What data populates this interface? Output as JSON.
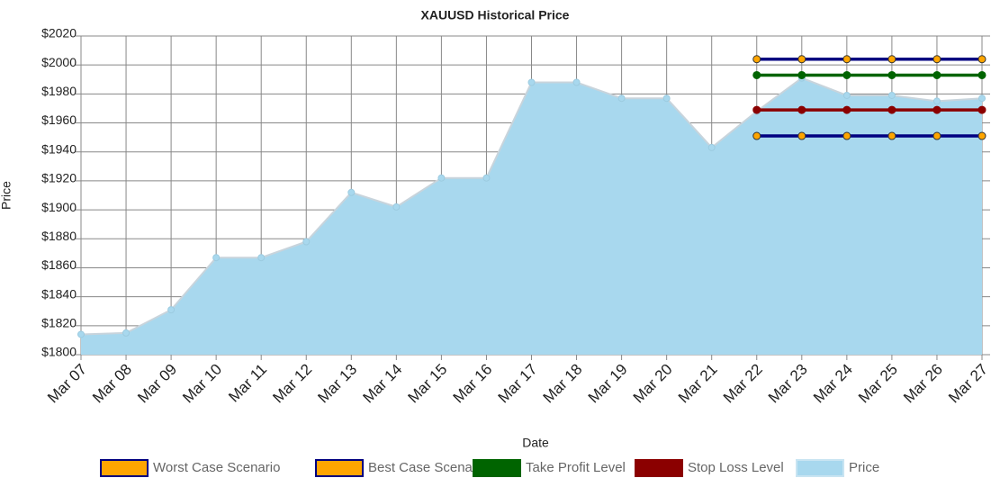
{
  "chart_data": {
    "type": "line",
    "title": "XAUUSD  Historical Price",
    "x_label": "Date",
    "y_label": "Price",
    "categories": [
      "Mar 07",
      "Mar 08",
      "Mar 09",
      "Mar 10",
      "Mar 11",
      "Mar 12",
      "Mar 13",
      "Mar 14",
      "Mar 15",
      "Mar 16",
      "Mar 17",
      "Mar 18",
      "Mar 19",
      "Mar 20",
      "Mar 21",
      "Mar 22",
      "Mar 23",
      "Mar 24",
      "Mar 25",
      "Mar 26",
      "Mar 27"
    ],
    "series": [
      {
        "name": "Worst Case Scenario",
        "color": "#000080",
        "marker_color": "#ffa500",
        "values": [
          null,
          null,
          null,
          null,
          null,
          null,
          null,
          null,
          null,
          null,
          null,
          null,
          null,
          null,
          null,
          1951,
          1951,
          1951,
          1951,
          1951,
          1951
        ]
      },
      {
        "name": "Best Case Scenario",
        "color": "#000080",
        "marker_color": "#ffa500",
        "values": [
          null,
          null,
          null,
          null,
          null,
          null,
          null,
          null,
          null,
          null,
          null,
          null,
          null,
          null,
          null,
          2004,
          2004,
          2004,
          2004,
          2004,
          2004
        ]
      },
      {
        "name": "Take Profit Level",
        "color": "#006400",
        "marker_color": "#006400",
        "values": [
          null,
          null,
          null,
          null,
          null,
          null,
          null,
          null,
          null,
          null,
          null,
          null,
          null,
          null,
          null,
          1993,
          1993,
          1993,
          1993,
          1993,
          1993
        ]
      },
      {
        "name": "Stop Loss Level",
        "color": "#8b0000",
        "marker_color": "#8b0000",
        "values": [
          null,
          null,
          null,
          null,
          null,
          null,
          null,
          null,
          null,
          null,
          null,
          null,
          null,
          null,
          null,
          1969,
          1969,
          1969,
          1969,
          1969,
          1969
        ]
      },
      {
        "name": "Price",
        "color": "#a8d8ee",
        "marker_color": "#a8d8ee",
        "area": true,
        "values": [
          1814,
          1815,
          1831,
          1867,
          1867,
          1878,
          1912,
          1902,
          1922,
          1922,
          1988,
          1988,
          1977,
          1977,
          1943,
          1968,
          1991,
          1979,
          1979,
          1975,
          1977
        ]
      }
    ],
    "ylim": [
      1800,
      2020
    ],
    "yticks": [
      {
        "value": 1800,
        "label": "$1800"
      },
      {
        "value": 1820,
        "label": "$1820"
      },
      {
        "value": 1840,
        "label": "$1840"
      },
      {
        "value": 1860,
        "label": "$1860"
      },
      {
        "value": 1880,
        "label": "$1880"
      },
      {
        "value": 1900,
        "label": "$1900"
      },
      {
        "value": 1920,
        "label": "$1920"
      },
      {
        "value": 1940,
        "label": "$1940"
      },
      {
        "value": 1960,
        "label": "$1960"
      },
      {
        "value": 1980,
        "label": "$1980"
      },
      {
        "value": 2000,
        "label": "$2000"
      },
      {
        "value": 2020,
        "label": "$2020"
      }
    ],
    "grid": true,
    "legend": "bottom"
  }
}
